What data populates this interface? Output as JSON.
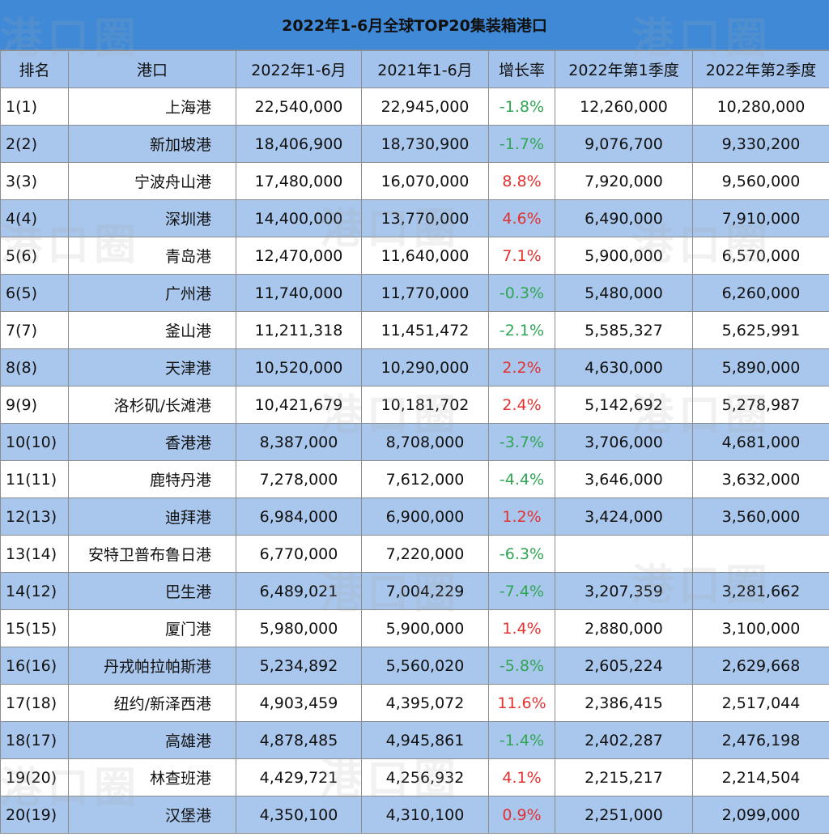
{
  "title": "2022年1-6月全球TOP20集装箱港口",
  "watermark": "港口圈",
  "colors": {
    "title_bg": "#3f89d7",
    "header_bg": "#a4c3ec",
    "row_alt_bg": "#a9c6ec",
    "growth_positive": "#e23232",
    "growth_negative": "#2fa653"
  },
  "headers": [
    "排名",
    "港口",
    "2022年1-6月",
    "2021年1-6月",
    "增长率",
    "2022年第1季度",
    "2022年第2季度"
  ],
  "rows": [
    {
      "rank": "1(1)",
      "port": "上海港",
      "h1_2022": "22,540,000",
      "h1_2021": "22,945,000",
      "growth": "-1.8%",
      "q1_2022": "12,260,000",
      "q2_2022": "10,280,000"
    },
    {
      "rank": "2(2)",
      "port": "新加坡港",
      "h1_2022": "18,406,900",
      "h1_2021": "18,730,900",
      "growth": "-1.7%",
      "q1_2022": "9,076,700",
      "q2_2022": "9,330,200"
    },
    {
      "rank": "3(3)",
      "port": "宁波舟山港",
      "h1_2022": "17,480,000",
      "h1_2021": "16,070,000",
      "growth": "8.8%",
      "q1_2022": "7,920,000",
      "q2_2022": "9,560,000"
    },
    {
      "rank": "4(4)",
      "port": "深圳港",
      "h1_2022": "14,400,000",
      "h1_2021": "13,770,000",
      "growth": "4.6%",
      "q1_2022": "6,490,000",
      "q2_2022": "7,910,000"
    },
    {
      "rank": "5(6)",
      "port": "青岛港",
      "h1_2022": "12,470,000",
      "h1_2021": "11,640,000",
      "growth": "7.1%",
      "q1_2022": "5,900,000",
      "q2_2022": "6,570,000"
    },
    {
      "rank": "6(5)",
      "port": "广州港",
      "h1_2022": "11,740,000",
      "h1_2021": "11,770,000",
      "growth": "-0.3%",
      "q1_2022": "5,480,000",
      "q2_2022": "6,260,000"
    },
    {
      "rank": "7(7)",
      "port": "釜山港",
      "h1_2022": "11,211,318",
      "h1_2021": "11,451,472",
      "growth": "-2.1%",
      "q1_2022": "5,585,327",
      "q2_2022": "5,625,991"
    },
    {
      "rank": "8(8)",
      "port": "天津港",
      "h1_2022": "10,520,000",
      "h1_2021": "10,290,000",
      "growth": "2.2%",
      "q1_2022": "4,630,000",
      "q2_2022": "5,890,000"
    },
    {
      "rank": "9(9)",
      "port": "洛杉矶/长滩港",
      "h1_2022": "10,421,679",
      "h1_2021": "10,181,702",
      "growth": "2.4%",
      "q1_2022": "5,142,692",
      "q2_2022": "5,278,987"
    },
    {
      "rank": "10(10)",
      "port": "香港港",
      "h1_2022": "8,387,000",
      "h1_2021": "8,708,000",
      "growth": "-3.7%",
      "q1_2022": "3,706,000",
      "q2_2022": "4,681,000"
    },
    {
      "rank": "11(11)",
      "port": "鹿特丹港",
      "h1_2022": "7,278,000",
      "h1_2021": "7,612,000",
      "growth": "-4.4%",
      "q1_2022": "3,646,000",
      "q2_2022": "3,632,000"
    },
    {
      "rank": "12(13)",
      "port": "迪拜港",
      "h1_2022": "6,984,000",
      "h1_2021": "6,900,000",
      "growth": "1.2%",
      "q1_2022": "3,424,000",
      "q2_2022": "3,560,000"
    },
    {
      "rank": "13(14)",
      "port": "安特卫普布鲁日港",
      "h1_2022": "6,770,000",
      "h1_2021": "7,220,000",
      "growth": "-6.3%",
      "q1_2022": "",
      "q2_2022": ""
    },
    {
      "rank": "14(12)",
      "port": "巴生港",
      "h1_2022": "6,489,021",
      "h1_2021": "7,004,229",
      "growth": "-7.4%",
      "q1_2022": "3,207,359",
      "q2_2022": "3,281,662"
    },
    {
      "rank": "15(15)",
      "port": "厦门港",
      "h1_2022": "5,980,000",
      "h1_2021": "5,900,000",
      "growth": "1.4%",
      "q1_2022": "2,880,000",
      "q2_2022": "3,100,000"
    },
    {
      "rank": "16(16)",
      "port": "丹戎帕拉帕斯港",
      "h1_2022": "5,234,892",
      "h1_2021": "5,560,020",
      "growth": "-5.8%",
      "q1_2022": "2,605,224",
      "q2_2022": "2,629,668"
    },
    {
      "rank": "17(18)",
      "port": "纽约/新泽西港",
      "h1_2022": "4,903,459",
      "h1_2021": "4,395,072",
      "growth": "11.6%",
      "q1_2022": "2,386,415",
      "q2_2022": "2,517,044"
    },
    {
      "rank": "18(17)",
      "port": "高雄港",
      "h1_2022": "4,878,485",
      "h1_2021": "4,945,861",
      "growth": "-1.4%",
      "q1_2022": "2,402,287",
      "q2_2022": "2,476,198"
    },
    {
      "rank": "19(20)",
      "port": "林查班港",
      "h1_2022": "4,429,721",
      "h1_2021": "4,256,932",
      "growth": "4.1%",
      "q1_2022": "2,215,217",
      "q2_2022": "2,214,504"
    },
    {
      "rank": "20(19)",
      "port": "汉堡港",
      "h1_2022": "4,350,100",
      "h1_2021": "4,310,100",
      "growth": "0.9%",
      "q1_2022": "2,251,000",
      "q2_2022": "2,099,000"
    }
  ]
}
